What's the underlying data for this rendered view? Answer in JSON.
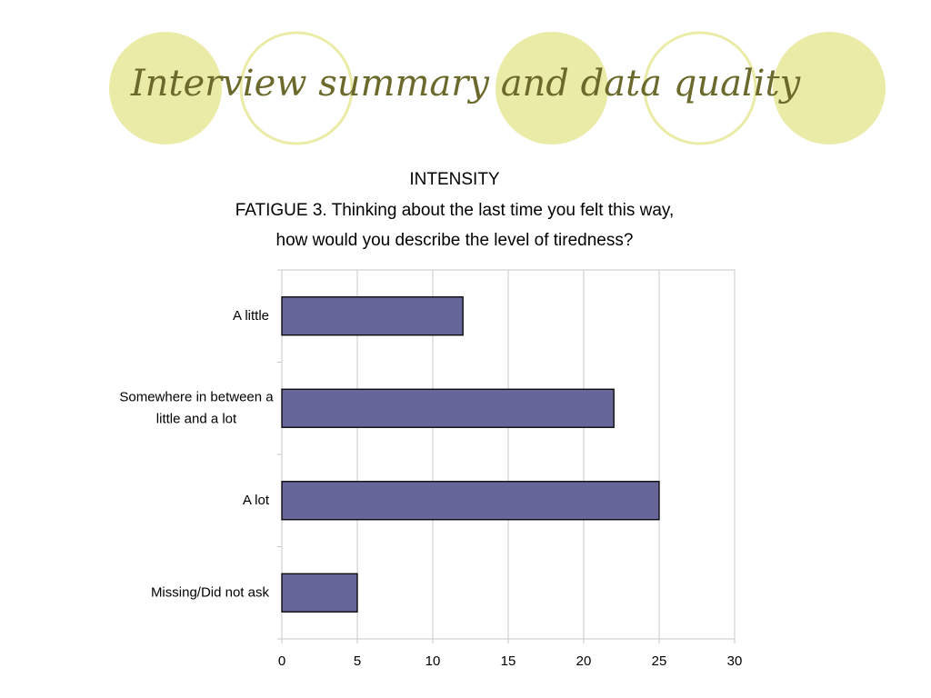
{
  "slide_title": "Interview summary and data quality",
  "chart_data": {
    "type": "barh",
    "title": "INTENSITY",
    "subtitle": [
      "FATIGUE 3. Thinking about the last time you felt this way,",
      "how would you describe the level of tiredness?"
    ],
    "categories": [
      "A little",
      "Somewhere in between a little and a lot",
      "A lot",
      "Missing/Did not ask"
    ],
    "values": [
      12,
      22,
      25,
      5
    ],
    "color": "#666699",
    "xlim": [
      0,
      30
    ],
    "xticks": [
      0,
      5,
      10,
      15,
      20,
      25,
      30
    ],
    "grid": true
  }
}
